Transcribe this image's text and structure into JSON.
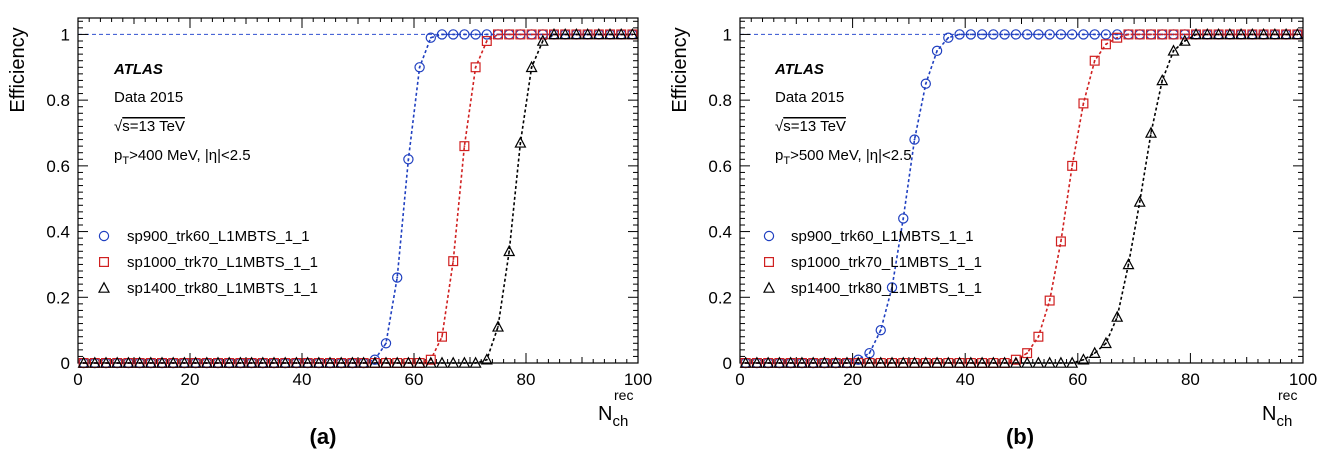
{
  "chart_data": [
    {
      "type": "scatter",
      "panel_label": "(a)",
      "ylabel": "Efficiency",
      "xlabel_main": "N",
      "xlabel_sub": "ch",
      "xlabel_sup": "rec",
      "xlim": [
        0,
        100
      ],
      "ylim": [
        0,
        1.05
      ],
      "x_ticks": [
        0,
        20,
        40,
        60,
        80,
        100
      ],
      "y_ticks": [
        0,
        0.2,
        0.4,
        0.6,
        0.8,
        1
      ],
      "reference_line_y": 1,
      "legend_position": "middle-left",
      "annotations": {
        "experiment": "ATLAS",
        "dataset": "Data 2015",
        "energy": "s=13 TeV",
        "cuts_prefix": "p",
        "cuts_sub": "T",
        "cuts_rest": ">400 MeV, |η|<2.5"
      },
      "series": [
        {
          "name": "sp900_trk60_L1MBTS_1_1",
          "color": "#2040c0",
          "marker": "circle",
          "x": [
            1,
            3,
            5,
            7,
            9,
            11,
            13,
            15,
            17,
            19,
            21,
            23,
            25,
            27,
            29,
            31,
            33,
            35,
            37,
            39,
            41,
            43,
            45,
            47,
            49,
            51,
            53,
            55,
            57,
            59,
            61,
            63,
            65,
            67,
            69,
            71,
            73,
            75,
            77,
            79,
            81,
            83,
            85,
            87,
            89,
            91,
            93,
            95,
            97,
            99
          ],
          "y": [
            0,
            0,
            0,
            0,
            0,
            0,
            0,
            0,
            0,
            0,
            0,
            0,
            0,
            0,
            0,
            0,
            0,
            0,
            0,
            0,
            0,
            0,
            0,
            0,
            0,
            0,
            0.01,
            0.06,
            0.26,
            0.62,
            0.9,
            0.99,
            1,
            1,
            1,
            1,
            1,
            1,
            1,
            1,
            1,
            1,
            1,
            1,
            1,
            1,
            1,
            1,
            1,
            1
          ]
        },
        {
          "name": "sp1000_trk70_L1MBTS_1_1",
          "color": "#d02020",
          "marker": "square",
          "x": [
            1,
            3,
            5,
            7,
            9,
            11,
            13,
            15,
            17,
            19,
            21,
            23,
            25,
            27,
            29,
            31,
            33,
            35,
            37,
            39,
            41,
            43,
            45,
            47,
            49,
            51,
            53,
            55,
            57,
            59,
            61,
            63,
            65,
            67,
            69,
            71,
            73,
            75,
            77,
            79,
            81,
            83,
            85,
            87,
            89,
            91,
            93,
            95,
            97,
            99
          ],
          "y": [
            0,
            0,
            0,
            0,
            0,
            0,
            0,
            0,
            0,
            0,
            0,
            0,
            0,
            0,
            0,
            0,
            0,
            0,
            0,
            0,
            0,
            0,
            0,
            0,
            0,
            0,
            0,
            0,
            0,
            0,
            0,
            0.01,
            0.08,
            0.31,
            0.66,
            0.9,
            0.98,
            1,
            1,
            1,
            1,
            1,
            1,
            1,
            1,
            1,
            1,
            1,
            1,
            1
          ]
        },
        {
          "name": "sp1400_trk80_L1MBTS_1_1",
          "color": "#000000",
          "marker": "triangle",
          "x": [
            1,
            3,
            5,
            7,
            9,
            11,
            13,
            15,
            17,
            19,
            21,
            23,
            25,
            27,
            29,
            31,
            33,
            35,
            37,
            39,
            41,
            43,
            45,
            47,
            49,
            51,
            53,
            55,
            57,
            59,
            61,
            63,
            65,
            67,
            69,
            71,
            73,
            75,
            77,
            79,
            81,
            83,
            85,
            87,
            89,
            91,
            93,
            95,
            97,
            99
          ],
          "y": [
            0,
            0,
            0,
            0,
            0,
            0,
            0,
            0,
            0,
            0,
            0,
            0,
            0,
            0,
            0,
            0,
            0,
            0,
            0,
            0,
            0,
            0,
            0,
            0,
            0,
            0,
            0,
            0,
            0,
            0,
            0,
            0,
            0,
            0,
            0,
            0,
            0.01,
            0.11,
            0.34,
            0.67,
            0.9,
            0.98,
            1,
            1,
            1,
            1,
            1,
            1,
            1,
            1
          ]
        }
      ]
    },
    {
      "type": "scatter",
      "panel_label": "(b)",
      "ylabel": "Efficiency",
      "xlabel_main": "N",
      "xlabel_sub": "ch",
      "xlabel_sup": "rec",
      "xlim": [
        0,
        100
      ],
      "ylim": [
        0,
        1.05
      ],
      "x_ticks": [
        0,
        20,
        40,
        60,
        80,
        100
      ],
      "y_ticks": [
        0,
        0.2,
        0.4,
        0.6,
        0.8,
        1
      ],
      "reference_line_y": 1,
      "legend_position": "middle-left",
      "annotations": {
        "experiment": "ATLAS",
        "dataset": "Data 2015",
        "energy": "s=13 TeV",
        "cuts_prefix": "p",
        "cuts_sub": "T",
        "cuts_rest": ">500 MeV, |η|<2.5"
      },
      "series": [
        {
          "name": "sp900_trk60_L1MBTS_1_1",
          "color": "#2040c0",
          "marker": "circle",
          "x": [
            1,
            3,
            5,
            7,
            9,
            11,
            13,
            15,
            17,
            19,
            21,
            23,
            25,
            27,
            29,
            31,
            33,
            35,
            37,
            39,
            41,
            43,
            45,
            47,
            49,
            51,
            53,
            55,
            57,
            59,
            61,
            63,
            65,
            67,
            69,
            71,
            73,
            75,
            77,
            79,
            81,
            83,
            85,
            87,
            89,
            91,
            93,
            95,
            97,
            99
          ],
          "y": [
            0,
            0,
            0,
            0,
            0,
            0,
            0,
            0,
            0,
            0,
            0.01,
            0.03,
            0.1,
            0.23,
            0.44,
            0.68,
            0.85,
            0.95,
            0.99,
            1,
            1,
            1,
            1,
            1,
            1,
            1,
            1,
            1,
            1,
            1,
            1,
            1,
            1,
            1,
            1,
            1,
            1,
            1,
            1,
            1,
            1,
            1,
            1,
            1,
            1,
            1,
            1,
            1,
            1,
            1
          ]
        },
        {
          "name": "sp1000_trk70_L1MBTS_1_1",
          "color": "#d02020",
          "marker": "square",
          "x": [
            1,
            3,
            5,
            7,
            9,
            11,
            13,
            15,
            17,
            19,
            21,
            23,
            25,
            27,
            29,
            31,
            33,
            35,
            37,
            39,
            41,
            43,
            45,
            47,
            49,
            51,
            53,
            55,
            57,
            59,
            61,
            63,
            65,
            67,
            69,
            71,
            73,
            75,
            77,
            79,
            81,
            83,
            85,
            87,
            89,
            91,
            93,
            95,
            97,
            99
          ],
          "y": [
            0,
            0,
            0,
            0,
            0,
            0,
            0,
            0,
            0,
            0,
            0,
            0,
            0,
            0,
            0,
            0,
            0,
            0,
            0,
            0,
            0,
            0,
            0,
            0,
            0.01,
            0.03,
            0.08,
            0.19,
            0.37,
            0.6,
            0.79,
            0.92,
            0.97,
            0.99,
            1,
            1,
            1,
            1,
            1,
            1,
            1,
            1,
            1,
            1,
            1,
            1,
            1,
            1,
            1,
            1
          ]
        },
        {
          "name": "sp1400_trk80_L1MBTS_1_1",
          "color": "#000000",
          "marker": "triangle",
          "x": [
            1,
            3,
            5,
            7,
            9,
            11,
            13,
            15,
            17,
            19,
            21,
            23,
            25,
            27,
            29,
            31,
            33,
            35,
            37,
            39,
            41,
            43,
            45,
            47,
            49,
            51,
            53,
            55,
            57,
            59,
            61,
            63,
            65,
            67,
            69,
            71,
            73,
            75,
            77,
            79,
            81,
            83,
            85,
            87,
            89,
            91,
            93,
            95,
            97,
            99
          ],
          "y": [
            0,
            0,
            0,
            0,
            0,
            0,
            0,
            0,
            0,
            0,
            0,
            0,
            0,
            0,
            0,
            0,
            0,
            0,
            0,
            0,
            0,
            0,
            0,
            0,
            0,
            0,
            0,
            0,
            0,
            0,
            0.01,
            0.03,
            0.06,
            0.14,
            0.3,
            0.49,
            0.7,
            0.86,
            0.95,
            0.98,
            1,
            1,
            1,
            1,
            1,
            1,
            1,
            1,
            1,
            1
          ]
        }
      ]
    }
  ]
}
